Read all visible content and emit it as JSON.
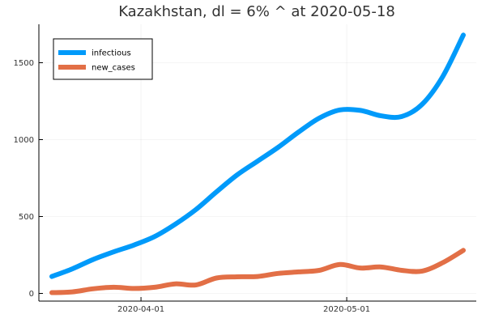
{
  "chart_data": {
    "type": "line",
    "title": "Kazakhstan,  dl = 6% ^ at 2020-05-18",
    "xlabel": "",
    "ylabel": "",
    "x_range": [
      "2020-03-19",
      "2020-05-18"
    ],
    "ylim": [
      -50,
      1750
    ],
    "x_ticks": [
      {
        "label": "2020-04-01",
        "date": "2020-04-01"
      },
      {
        "label": "2020-05-01",
        "date": "2020-05-01"
      }
    ],
    "y_ticks": [
      {
        "label": "0",
        "value": 0
      },
      {
        "label": "500",
        "value": 500
      },
      {
        "label": "1000",
        "value": 1000
      },
      {
        "label": "1500",
        "value": 1500
      }
    ],
    "grid": true,
    "legend_position": "top-left",
    "series": [
      {
        "name": "infectious",
        "color": "#009AFA",
        "points": [
          [
            "2020-03-19",
            110
          ],
          [
            "2020-03-22",
            160
          ],
          [
            "2020-03-25",
            220
          ],
          [
            "2020-03-28",
            270
          ],
          [
            "2020-03-31",
            315
          ],
          [
            "2020-04-03",
            370
          ],
          [
            "2020-04-06",
            450
          ],
          [
            "2020-04-09",
            545
          ],
          [
            "2020-04-12",
            660
          ],
          [
            "2020-04-15",
            770
          ],
          [
            "2020-04-18",
            860
          ],
          [
            "2020-04-21",
            950
          ],
          [
            "2020-04-24",
            1050
          ],
          [
            "2020-04-27",
            1140
          ],
          [
            "2020-04-30",
            1193
          ],
          [
            "2020-05-03",
            1190
          ],
          [
            "2020-05-06",
            1155
          ],
          [
            "2020-05-09",
            1150
          ],
          [
            "2020-05-12",
            1230
          ],
          [
            "2020-05-15",
            1410
          ],
          [
            "2020-05-18",
            1680
          ]
        ]
      },
      {
        "name": "new_cases",
        "color": "#E26F46",
        "points": [
          [
            "2020-03-19",
            5
          ],
          [
            "2020-03-22",
            10
          ],
          [
            "2020-03-25",
            30
          ],
          [
            "2020-03-28",
            40
          ],
          [
            "2020-03-31",
            32
          ],
          [
            "2020-04-03",
            40
          ],
          [
            "2020-04-06",
            62
          ],
          [
            "2020-04-09",
            55
          ],
          [
            "2020-04-12",
            100
          ],
          [
            "2020-04-15",
            108
          ],
          [
            "2020-04-18",
            110
          ],
          [
            "2020-04-21",
            130
          ],
          [
            "2020-04-24",
            140
          ],
          [
            "2020-04-27",
            150
          ],
          [
            "2020-04-30",
            188
          ],
          [
            "2020-05-03",
            165
          ],
          [
            "2020-05-06",
            172
          ],
          [
            "2020-05-09",
            150
          ],
          [
            "2020-05-12",
            145
          ],
          [
            "2020-05-15",
            200
          ],
          [
            "2020-05-18",
            280
          ]
        ]
      }
    ]
  }
}
